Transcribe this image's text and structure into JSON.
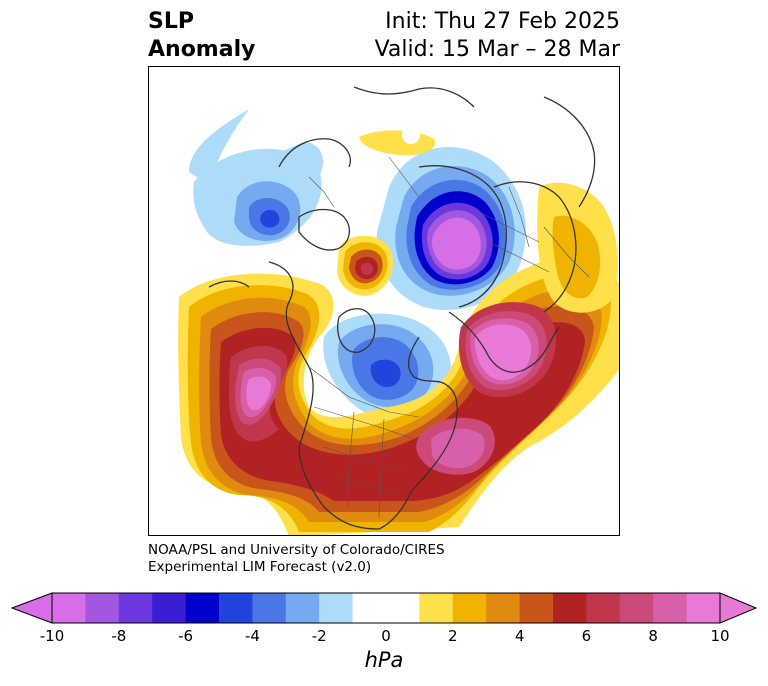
{
  "title": {
    "left_line1": "SLP",
    "left_line2": "Anomaly",
    "right_line1": "Init: Thu 27 Feb 2025",
    "right_line2": "Valid: 15 Mar – 28 Mar"
  },
  "credit": {
    "line1": "NOAA/PSL and University of Colorado/CIRES",
    "line2": "Experimental LIM Forecast (v2.0)"
  },
  "colorbar": {
    "unit": "hPa",
    "ticks": [
      "-10",
      "-8",
      "-6",
      "-4",
      "-2",
      "0",
      "2",
      "4",
      "6",
      "8",
      "10"
    ],
    "bins": [
      {
        "range": [
          -10,
          -9
        ],
        "color": "#d66ee6"
      },
      {
        "range": [
          -9,
          -8
        ],
        "color": "#a257e0"
      },
      {
        "range": [
          -8,
          -7
        ],
        "color": "#6b38e0"
      },
      {
        "range": [
          -7,
          -6
        ],
        "color": "#3a1ed4"
      },
      {
        "range": [
          -6,
          -5
        ],
        "color": "#0000cc"
      },
      {
        "range": [
          -5,
          -4
        ],
        "color": "#2244dd"
      },
      {
        "range": [
          -4,
          -3
        ],
        "color": "#4b77e6"
      },
      {
        "range": [
          -3,
          -2
        ],
        "color": "#75aaf0"
      },
      {
        "range": [
          -2,
          -1
        ],
        "color": "#addcfa"
      },
      {
        "range": [
          -1,
          1
        ],
        "color": "#ffffff"
      },
      {
        "range": [
          1,
          2
        ],
        "color": "#ffe04a"
      },
      {
        "range": [
          2,
          3
        ],
        "color": "#f0b400"
      },
      {
        "range": [
          3,
          4
        ],
        "color": "#e08a10"
      },
      {
        "range": [
          4,
          5
        ],
        "color": "#c8561a"
      },
      {
        "range": [
          5,
          6
        ],
        "color": "#b22222"
      },
      {
        "range": [
          6,
          7
        ],
        "color": "#c0364a"
      },
      {
        "range": [
          7,
          8
        ],
        "color": "#cc4a7a"
      },
      {
        "range": [
          8,
          9
        ],
        "color": "#d860aa"
      },
      {
        "range": [
          9,
          10
        ],
        "color": "#e87ad6"
      }
    ],
    "under_color": "#d66ee6",
    "over_color": "#e87ad6"
  },
  "map": {
    "projection": "north-polar-stereographic",
    "anomaly_centers": [
      {
        "region": "north-pacific",
        "sign": "positive",
        "peak": 10
      },
      {
        "region": "eastern-united-states",
        "sign": "positive",
        "peak": 9
      },
      {
        "region": "north-atlantic-europe",
        "sign": "positive",
        "peak": 10
      },
      {
        "region": "siberia-arctic",
        "sign": "negative",
        "peak": -10
      },
      {
        "region": "hudson-bay",
        "sign": "negative",
        "peak": -6
      },
      {
        "region": "eastern-asia-pacific",
        "sign": "negative",
        "peak": -6
      }
    ]
  }
}
